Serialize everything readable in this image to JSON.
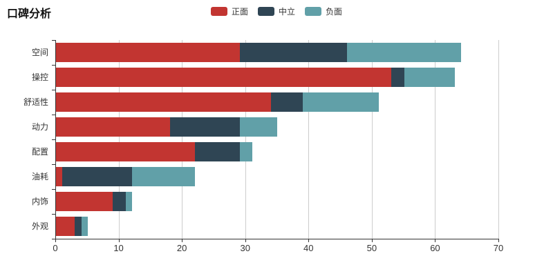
{
  "title": "口碑分析",
  "colors": {
    "positive": "#c23531",
    "neutral": "#2f4554",
    "negative": "#61a0a8",
    "axis": "#333333",
    "gridline": "#cccccc",
    "background": "#ffffff",
    "text": "#333333"
  },
  "legend": {
    "items": [
      {
        "label": "正面",
        "color": "#c23531"
      },
      {
        "label": "中立",
        "color": "#2f4554"
      },
      {
        "label": "负面",
        "color": "#61a0a8"
      }
    ]
  },
  "chart_data": {
    "type": "bar",
    "orientation": "horizontal",
    "stacked": true,
    "title": "口碑分析",
    "categories": [
      "空间",
      "操控",
      "舒适性",
      "动力",
      "配置",
      "油耗",
      "内饰",
      "外观"
    ],
    "series": [
      {
        "name": "正面",
        "color": "#c23531",
        "values": [
          29,
          53,
          34,
          18,
          22,
          1,
          9,
          3
        ]
      },
      {
        "name": "中立",
        "color": "#2f4554",
        "values": [
          17,
          2,
          5,
          11,
          7,
          11,
          2,
          1
        ]
      },
      {
        "name": "负面",
        "color": "#61a0a8",
        "values": [
          18,
          8,
          12,
          6,
          2,
          10,
          1,
          1
        ]
      }
    ],
    "totals": [
      64,
      63,
      51,
      35,
      31,
      22,
      12,
      5
    ],
    "xlabel": "",
    "ylabel": "",
    "xlim": [
      0,
      70
    ],
    "xticks": [
      0,
      10,
      20,
      30,
      40,
      50,
      60,
      70
    ],
    "grid": true,
    "legend_position": "top-center"
  }
}
